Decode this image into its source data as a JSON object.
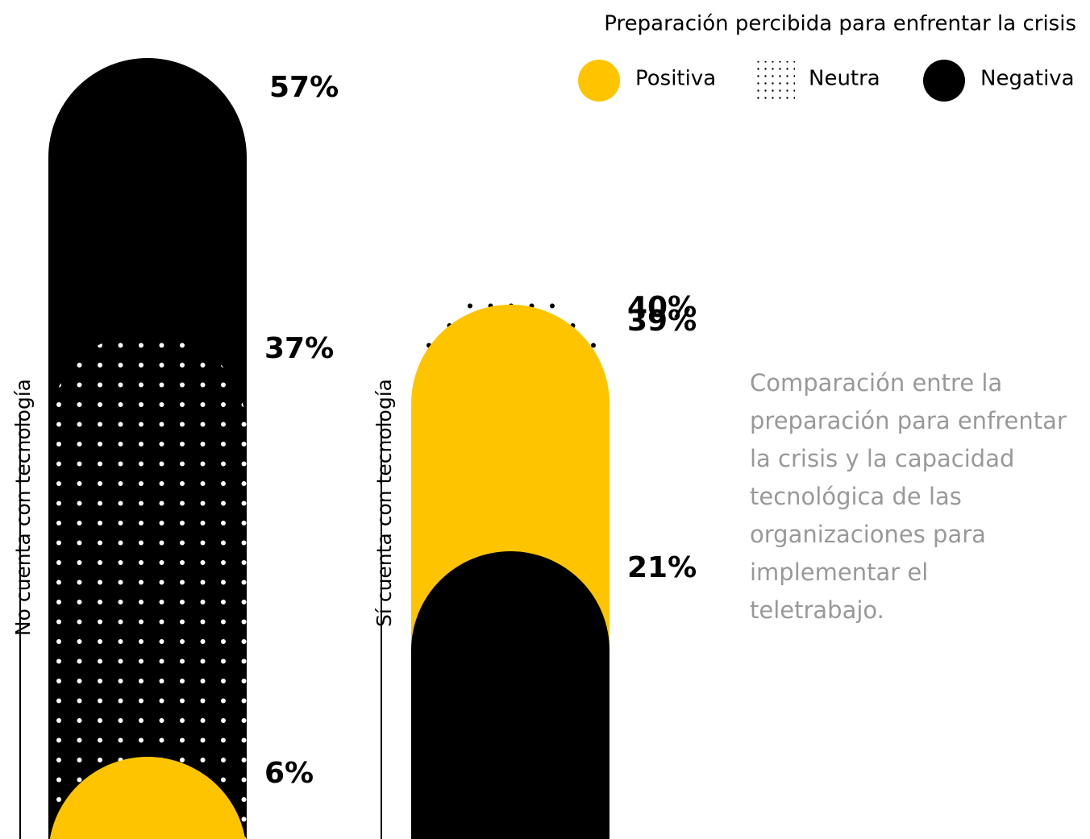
{
  "chart_data": {
    "type": "overlapping-capsules",
    "legend_title": "Preparación percibida para enfrentar la crisis",
    "categories": [
      "No cuenta con tecnología",
      "Sí cuenta con tecnología"
    ],
    "series": [
      {
        "name": "Positiva",
        "color": "#FFC400",
        "values": [
          6,
          39
        ],
        "value_labels": [
          "6%",
          "39%"
        ]
      },
      {
        "name": "Neutra",
        "pattern": "dots",
        "values": [
          37,
          40
        ],
        "value_labels": [
          "37%",
          "40%"
        ]
      },
      {
        "name": "Negativa",
        "color": "#000000",
        "values": [
          57,
          21
        ],
        "value_labels": [
          "57%",
          "21%"
        ]
      }
    ],
    "note": "Comparación entre la preparación para enfrentar la crisis y la capacidad tecnológica de las organizaciones para implementar el teletrabajo."
  }
}
